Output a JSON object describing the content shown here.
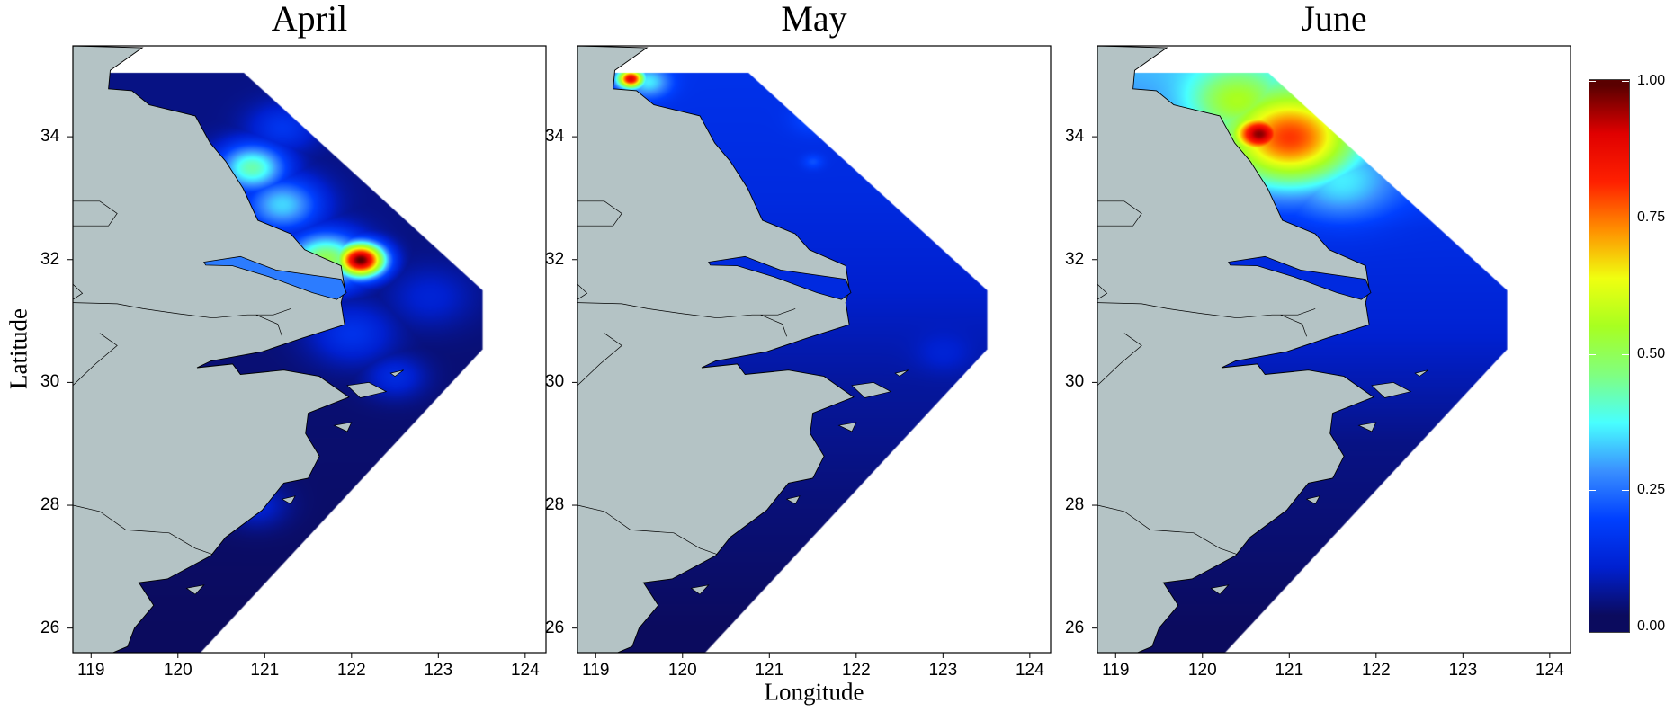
{
  "chart_data": {
    "type": "heatmap",
    "xlabel": "Longitude",
    "ylabel": "Latitude",
    "xlim": [
      118.79,
      124.24
    ],
    "ylim": [
      25.6,
      35.48
    ],
    "xticks": [
      "119",
      "120",
      "121",
      "122",
      "123",
      "124"
    ],
    "yticks": [
      "26",
      "28",
      "30",
      "32",
      "34"
    ],
    "grid": false,
    "colorbar": {
      "range": [
        0,
        1
      ],
      "ticks": [
        "0.00",
        "0.25",
        "0.50",
        "0.75",
        "1.00"
      ],
      "colors": [
        "#0b0b5e",
        "#0020d0",
        "#0040ff",
        "#3a90ff",
        "#48ffff",
        "#80ff80",
        "#a8ff20",
        "#f0ff10",
        "#ff9000",
        "#ff2000",
        "#e00000",
        "#5a0000"
      ],
      "placement": "right"
    },
    "land_color": "#b4c3c5",
    "panels": [
      {
        "title": "April",
        "baseline": [
          [
            35.0,
            0.03
          ],
          [
            33.0,
            0.03
          ],
          [
            31.0,
            0.02
          ],
          [
            26.0,
            0.0
          ]
        ],
        "river_value": 0.25,
        "hotspots": [
          {
            "lon": 122.1,
            "lat": 32.0,
            "value": 1.0,
            "radius": 0.28
          },
          {
            "lon": 121.7,
            "lat": 32.0,
            "value": 0.5,
            "radius": 0.45
          },
          {
            "lon": 120.85,
            "lat": 33.5,
            "value": 0.42,
            "radius": 0.4
          },
          {
            "lon": 121.2,
            "lat": 32.9,
            "value": 0.33,
            "radius": 0.45
          },
          {
            "lon": 121.2,
            "lat": 34.15,
            "value": 0.15,
            "radius": 0.4
          },
          {
            "lon": 122.9,
            "lat": 31.4,
            "value": 0.1,
            "radius": 0.5
          },
          {
            "lon": 122.5,
            "lat": 30.1,
            "value": 0.12,
            "radius": 0.35
          },
          {
            "lon": 122.0,
            "lat": 30.8,
            "value": 0.14,
            "radius": 0.5
          },
          {
            "lon": 120.9,
            "lat": 28.0,
            "value": 0.1,
            "radius": 0.35
          }
        ]
      },
      {
        "title": "May",
        "baseline": [
          [
            35.0,
            0.14
          ],
          [
            33.0,
            0.12
          ],
          [
            31.5,
            0.09
          ],
          [
            30.0,
            0.05
          ],
          [
            28.0,
            0.02
          ],
          [
            26.0,
            0.0
          ]
        ],
        "river_value": 0.12,
        "hotspots": [
          {
            "lon": 119.4,
            "lat": 34.95,
            "value": 0.9,
            "radius": 0.15
          },
          {
            "lon": 119.6,
            "lat": 34.9,
            "value": 0.35,
            "radius": 0.25
          },
          {
            "lon": 121.5,
            "lat": 34.3,
            "value": 0.2,
            "radius": 0.25
          },
          {
            "lon": 121.5,
            "lat": 33.6,
            "value": 0.2,
            "radius": 0.12
          },
          {
            "lon": 123.0,
            "lat": 30.5,
            "value": 0.1,
            "radius": 0.3
          }
        ]
      },
      {
        "title": "June",
        "baseline": [
          [
            35.0,
            0.3
          ],
          [
            33.5,
            0.2
          ],
          [
            32.5,
            0.13
          ],
          [
            31.0,
            0.1
          ],
          [
            29.0,
            0.03
          ],
          [
            26.0,
            0.0
          ]
        ],
        "river_value": 0.12,
        "hotspots": [
          {
            "lon": 120.65,
            "lat": 34.05,
            "value": 0.97,
            "radius": 0.3
          },
          {
            "lon": 121.0,
            "lat": 34.0,
            "value": 0.8,
            "radius": 0.75
          },
          {
            "lon": 120.4,
            "lat": 34.6,
            "value": 0.55,
            "radius": 0.55
          },
          {
            "lon": 121.6,
            "lat": 33.3,
            "value": 0.35,
            "radius": 0.6
          }
        ]
      }
    ]
  }
}
